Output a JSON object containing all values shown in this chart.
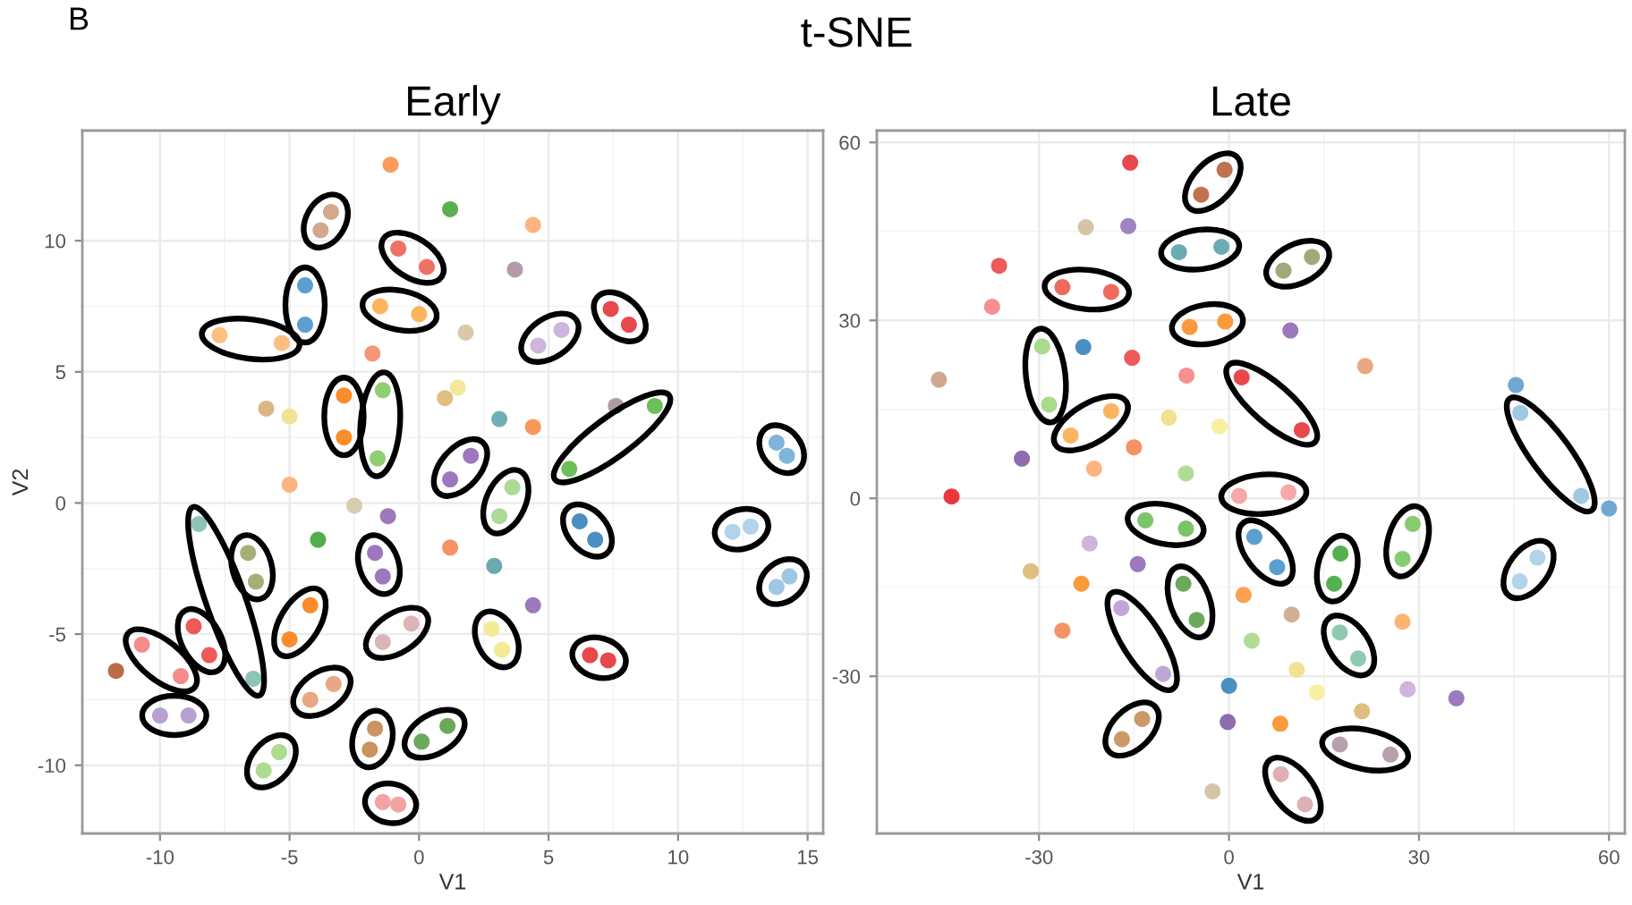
{
  "chart_data": [
    {
      "type": "scatter",
      "title": "Early",
      "xlabel": "V1",
      "ylabel": "V2",
      "annotations": [
        "B",
        "t-SNE"
      ],
      "marker": "circle",
      "grid": true,
      "xlim": [
        -13.0,
        15.6
      ],
      "ylim": [
        -12.6,
        14.2
      ],
      "xticks": [
        -10,
        -5,
        0,
        5,
        10,
        15
      ],
      "yticks": [
        -10,
        -5,
        0,
        5,
        10
      ],
      "series": [
        {
          "color": "#d4a88e",
          "x": [
            -3.8,
            -3.4
          ],
          "values": [
            10.4,
            11.1
          ]
        },
        {
          "color": "#f07064",
          "x": [
            -0.8,
            0.3
          ],
          "values": [
            9.7,
            9.0
          ]
        },
        {
          "color": "#5b9fd0",
          "x": [
            -4.4,
            -4.4
          ],
          "values": [
            8.3,
            6.8
          ]
        },
        {
          "color": "#fdb45c",
          "x": [
            -1.5,
            0.0
          ],
          "values": [
            7.5,
            7.2
          ]
        },
        {
          "color": "#fdbf80",
          "x": [
            -7.7,
            -5.3
          ],
          "values": [
            6.4,
            6.1
          ]
        },
        {
          "color": "#fb8c2c",
          "x": [
            -2.9,
            -2.9
          ],
          "values": [
            4.1,
            2.5
          ]
        },
        {
          "color": "#8fcf72",
          "x": [
            -1.4,
            -1.6
          ],
          "values": [
            4.3,
            1.7
          ]
        },
        {
          "color": "#cdb5dd",
          "x": [
            4.6,
            5.5
          ],
          "values": [
            6.0,
            6.6
          ]
        },
        {
          "color": "#e8484c",
          "x": [
            7.4,
            8.1
          ],
          "values": [
            7.4,
            6.8
          ]
        },
        {
          "color": "#6dbf5c",
          "x": [
            5.8,
            9.1
          ],
          "values": [
            1.3,
            3.7
          ]
        },
        {
          "color": "#7fb5dd",
          "x": [
            13.8,
            14.2
          ],
          "values": [
            2.3,
            1.8
          ]
        },
        {
          "color": "#9c79bd",
          "x": [
            1.2,
            2.0
          ],
          "values": [
            0.9,
            1.8
          ]
        },
        {
          "color": "#abdb96",
          "x": [
            3.1,
            3.6
          ],
          "values": [
            -0.5,
            0.6
          ]
        },
        {
          "color": "#4a8fc2",
          "x": [
            6.2,
            6.8
          ],
          "values": [
            -0.7,
            -1.4
          ]
        },
        {
          "color": "#b2d4ea",
          "x": [
            12.1,
            12.8
          ],
          "values": [
            -1.1,
            -0.9
          ]
        },
        {
          "color": "#9ec7e4",
          "x": [
            13.8,
            14.3
          ],
          "values": [
            -3.2,
            -2.8
          ]
        },
        {
          "color": "#f3eb95",
          "x": [
            2.8,
            3.2
          ],
          "values": [
            -4.8,
            -5.6
          ]
        },
        {
          "color": "#e8484c",
          "x": [
            6.6,
            7.3
          ],
          "values": [
            -5.8,
            -6.0
          ]
        },
        {
          "color": "#6aaa5a",
          "x": [
            0.1,
            1.1
          ],
          "values": [
            -9.1,
            -8.5
          ]
        },
        {
          "color": "#9c79bd",
          "x": [
            -1.7,
            -1.4
          ],
          "values": [
            -1.9,
            -2.8
          ]
        },
        {
          "color": "#8cc5b5",
          "x": [
            -8.5,
            -6.4
          ],
          "values": [
            -0.8,
            -6.7
          ]
        },
        {
          "color": "#a8ae78",
          "x": [
            -6.6,
            -6.3
          ],
          "values": [
            -1.9,
            -3.0
          ]
        },
        {
          "color": "#ee5a5a",
          "x": [
            -8.7,
            -8.1
          ],
          "values": [
            -4.7,
            -5.8
          ]
        },
        {
          "color": "#f68b8b",
          "x": [
            -10.7,
            -9.2
          ],
          "values": [
            -5.4,
            -6.6
          ]
        },
        {
          "color": "#b9a0d0",
          "x": [
            -10.0,
            -8.9
          ],
          "values": [
            -8.1,
            -8.1
          ]
        },
        {
          "color": "#fb8c2c",
          "x": [
            -4.2,
            -5.0
          ],
          "values": [
            -3.9,
            -5.2
          ]
        },
        {
          "color": "#e8a883",
          "x": [
            -4.2,
            -3.3
          ],
          "values": [
            -7.5,
            -6.9
          ]
        },
        {
          "color": "#acdc8f",
          "x": [
            -6.0,
            -5.4
          ],
          "values": [
            -10.2,
            -9.5
          ]
        },
        {
          "color": "#dcb4b8",
          "x": [
            -1.4,
            -0.3
          ],
          "values": [
            -5.3,
            -4.6
          ]
        },
        {
          "color": "#c99460",
          "x": [
            -1.7,
            -1.9
          ],
          "values": [
            -8.6,
            -9.4
          ]
        },
        {
          "color": "#f4a3a3",
          "x": [
            -1.4,
            -0.8
          ],
          "values": [
            -11.4,
            -11.5
          ]
        },
        {
          "colors": [
            "#fb9a5a",
            "#5aaf50",
            "#fdb480",
            "#b49aaa",
            "#dac8a8",
            "#f5957a",
            "#dbb787",
            "#f2e294",
            "#e0be80",
            "#f4e89a",
            "#6fb0b3",
            "#f89858",
            "#b09aa5",
            "#fdb480",
            "#d8ccae",
            "#9c79bd",
            "#52ad4e",
            "#f69266",
            "#6aaab0",
            "#9c79bd",
            "#b96b4a"
          ],
          "x": [
            -1.1,
            1.2,
            4.4,
            3.7,
            1.8,
            -1.8,
            -5.9,
            -5.0,
            1.0,
            1.5,
            3.1,
            4.4,
            7.6,
            -5.0,
            -2.5,
            -1.2,
            -3.9,
            1.2,
            2.9,
            4.4,
            -11.7
          ],
          "values": [
            12.9,
            11.2,
            10.6,
            8.9,
            6.5,
            5.7,
            3.6,
            3.3,
            4.0,
            4.4,
            3.2,
            2.9,
            3.7,
            0.7,
            -0.1,
            -0.5,
            -1.4,
            -1.7,
            -2.4,
            -3.9,
            -6.4
          ]
        }
      ]
    },
    {
      "type": "scatter",
      "title": "Late",
      "xlabel": "V1",
      "marker": "circle",
      "grid": true,
      "xlim": [
        -55.6,
        62.5
      ],
      "ylim": [
        -56.5,
        62.0
      ],
      "xticks": [
        -30,
        0,
        30,
        60
      ],
      "yticks": [
        -30,
        0,
        30,
        60
      ],
      "series": [
        {
          "color": "#c0724f",
          "x": [
            -4.4,
            -0.7
          ],
          "values": [
            51.2,
            55.4
          ]
        },
        {
          "color": "#6aacb2",
          "x": [
            -7.9,
            -1.2
          ],
          "values": [
            41.5,
            42.4
          ]
        },
        {
          "color": "#a3a878",
          "x": [
            8.6,
            13.1
          ],
          "values": [
            38.4,
            40.7
          ]
        },
        {
          "color": "#ee6a5c",
          "x": [
            -26.3,
            -18.6
          ],
          "values": [
            35.6,
            34.8
          ]
        },
        {
          "color": "#fb9a3a",
          "x": [
            -6.2,
            -0.6
          ],
          "values": [
            28.9,
            29.8
          ]
        },
        {
          "color": "#a8db8a",
          "x": [
            -29.5,
            -28.4
          ],
          "values": [
            25.6,
            15.8
          ]
        },
        {
          "color": "#fdb462",
          "x": [
            -25.0,
            -18.6
          ],
          "values": [
            10.6,
            14.7
          ]
        },
        {
          "color": "#e8484c",
          "x": [
            2.0,
            11.5
          ],
          "values": [
            20.4,
            11.5
          ]
        },
        {
          "color": "#9ecae1",
          "x": [
            46.0,
            55.6
          ],
          "values": [
            14.4,
            0.4
          ]
        },
        {
          "color": "#f8a8a8",
          "x": [
            1.6,
            9.4
          ],
          "values": [
            0.4,
            1.0
          ]
        },
        {
          "color": "#7cc46a",
          "x": [
            -13.2,
            -6.8
          ],
          "values": [
            -3.7,
            -5.1
          ]
        },
        {
          "color": "#5a9fd0",
          "x": [
            4.0,
            7.6
          ],
          "values": [
            -6.5,
            -11.6
          ]
        },
        {
          "color": "#55b050",
          "x": [
            17.6,
            16.6
          ],
          "values": [
            -9.3,
            -14.4
          ]
        },
        {
          "color": "#88cc70",
          "x": [
            29.0,
            27.4
          ],
          "values": [
            -4.3,
            -10.2
          ]
        },
        {
          "color": "#b2d4ea",
          "x": [
            48.7,
            45.9
          ],
          "values": [
            -10.0,
            -14.0
          ]
        },
        {
          "color": "#6aaa5a",
          "x": [
            -7.2,
            -5.1
          ],
          "values": [
            -14.4,
            -20.5
          ]
        },
        {
          "color": "#bea6d6",
          "x": [
            -17.0,
            -10.4
          ],
          "values": [
            -18.5,
            -29.6
          ]
        },
        {
          "color": "#8fcab0",
          "x": [
            17.5,
            20.4
          ],
          "values": [
            -22.6,
            -27.0
          ]
        },
        {
          "color": "#cc9966",
          "x": [
            -13.7,
            -16.9
          ],
          "values": [
            -37.2,
            -40.6
          ]
        },
        {
          "color": "#b8a0ae",
          "x": [
            17.5,
            25.5
          ],
          "values": [
            -41.5,
            -43.2
          ]
        },
        {
          "color": "#dcb0b4",
          "x": [
            8.2,
            12.0
          ],
          "values": [
            -46.5,
            -51.6
          ]
        },
        {
          "colors": [
            "#6fa8d4",
            "#e8484c",
            "#d6c4a6",
            "#a084c0",
            "#ee5a5a",
            "#f69090",
            "#9c79bd",
            "#4a8fc2",
            "#ee5a5a",
            "#e8a883",
            "#d0a890",
            "#f89090",
            "#f0e28e",
            "#f8f0a0",
            "#8e6cb0",
            "#f69266",
            "#fdb480",
            "#b0dc98",
            "#e8383c",
            "#6fa8d4",
            "#cdb5dd",
            "#9c79bd",
            "#e0be80",
            "#fb9a3a",
            "#fba050",
            "#f69266",
            "#d4ae96",
            "#b0dc98",
            "#fdb470",
            "#f2e294",
            "#4a8fc2",
            "#f8f0a0",
            "#cdb5dd",
            "#9c79bd",
            "#e0be80",
            "#8e6cb0",
            "#fb9a3a",
            "#d6c4a6"
          ],
          "x": [
            45.3,
            -15.6,
            -22.6,
            -15.9,
            -36.3,
            -37.4,
            9.7,
            -23.0,
            -15.3,
            21.5,
            -45.8,
            -6.7,
            -9.5,
            -1.5,
            -32.7,
            -15.0,
            -21.3,
            -6.8,
            -43.8,
            60.0,
            -22.0,
            -14.4,
            -31.3,
            -23.3,
            2.3,
            -26.3,
            9.9,
            3.6,
            27.4,
            10.7,
            0.0,
            13.9,
            28.2,
            35.9,
            21.0,
            -0.2,
            8.1,
            -2.6
          ],
          "values": [
            19.1,
            56.6,
            45.7,
            45.9,
            39.2,
            32.3,
            28.3,
            25.5,
            23.7,
            22.3,
            20.0,
            20.7,
            13.6,
            12.1,
            6.7,
            8.6,
            5.0,
            4.2,
            0.3,
            -1.7,
            -7.6,
            -11.1,
            -12.3,
            -14.4,
            -16.3,
            -22.3,
            -19.6,
            -24.0,
            -20.8,
            -28.9,
            -31.6,
            -32.7,
            -32.2,
            -33.7,
            -35.9,
            -37.7,
            -38.0,
            -49.4
          ]
        }
      ]
    }
  ]
}
